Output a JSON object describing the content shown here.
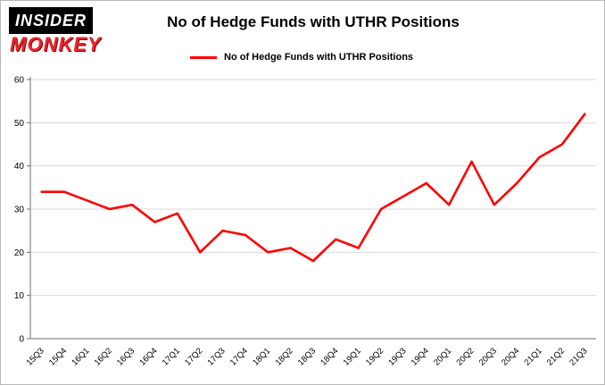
{
  "logo": {
    "line1": "INSIDER",
    "line2": "MONKEY"
  },
  "header": {
    "title": "No of Hedge Funds with UTHR Positions"
  },
  "legend": {
    "label": "No of Hedge Funds with UTHR Positions"
  },
  "chart_data": {
    "type": "line",
    "title": "No of Hedge Funds with UTHR Positions",
    "categories": [
      "15Q3",
      "15Q4",
      "16Q1",
      "16Q2",
      "16Q3",
      "16Q4",
      "17Q1",
      "17Q2",
      "17Q3",
      "17Q4",
      "18Q1",
      "18Q2",
      "18Q3",
      "18Q4",
      "19Q1",
      "19Q2",
      "19Q3",
      "19Q4",
      "20Q1",
      "20Q2",
      "20Q3",
      "20Q4",
      "21Q1",
      "21Q2",
      "21Q3"
    ],
    "values": [
      34,
      34,
      32,
      30,
      31,
      27,
      29,
      20,
      25,
      24,
      20,
      21,
      18,
      23,
      21,
      30,
      33,
      36,
      31,
      41,
      31,
      36,
      42,
      45,
      52
    ],
    "series_color": "#ff0000",
    "grid_color": "#d9d9d9",
    "axis_color": "#6e6e6e",
    "xlabel": "",
    "ylabel": "",
    "ylim": [
      0,
      60
    ],
    "yticks": [
      0,
      10,
      20,
      30,
      40,
      50,
      60
    ],
    "grid": true,
    "legend_position": "top"
  }
}
